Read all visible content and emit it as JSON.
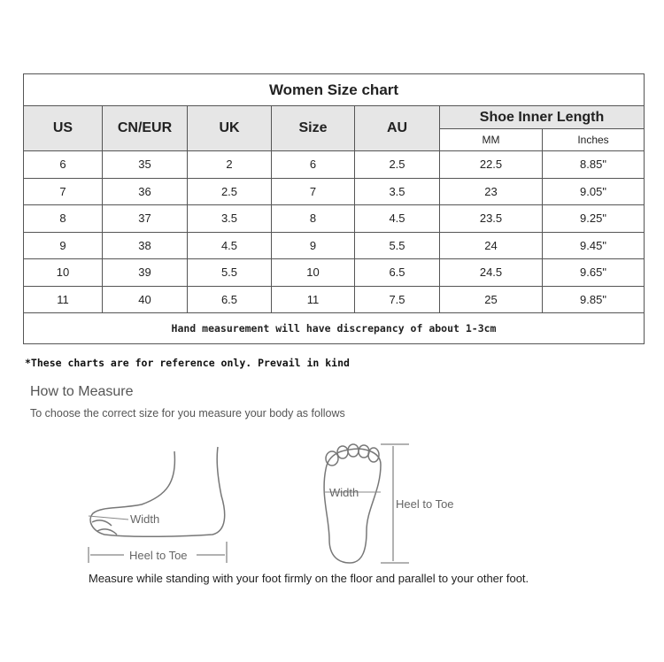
{
  "table": {
    "title": "Women Size chart",
    "headers": [
      "US",
      "CN/EUR",
      "UK",
      "Size",
      "AU"
    ],
    "group_header": "Shoe Inner Length",
    "sub_headers": [
      "MM",
      "Inches"
    ],
    "rows": [
      [
        "6",
        "35",
        "2",
        "6",
        "2.5",
        "22.5",
        "8.85\""
      ],
      [
        "7",
        "36",
        "2.5",
        "7",
        "3.5",
        "23",
        "9.05\""
      ],
      [
        "8",
        "37",
        "3.5",
        "8",
        "4.5",
        "23.5",
        "9.25\""
      ],
      [
        "9",
        "38",
        "4.5",
        "9",
        "5.5",
        "24",
        "9.45\""
      ],
      [
        "10",
        "39",
        "5.5",
        "10",
        "6.5",
        "24.5",
        "9.65\""
      ],
      [
        "11",
        "40",
        "6.5",
        "11",
        "7.5",
        "25",
        "9.85\""
      ]
    ],
    "note": "Hand measurement will have discrepancy of about 1-3cm"
  },
  "reference_note": "*These charts are for reference only. Prevail in kind",
  "how_to": {
    "title": "How to Measure",
    "subtitle": "To choose the correct size for you measure your body as follows",
    "side_width_label": "Width",
    "side_length_label": "Heel to Toe",
    "sole_width_label": "Width",
    "sole_length_label": "Heel to Toe",
    "caption": "Measure while standing with your foot firmly on the floor and parallel to your other foot."
  }
}
